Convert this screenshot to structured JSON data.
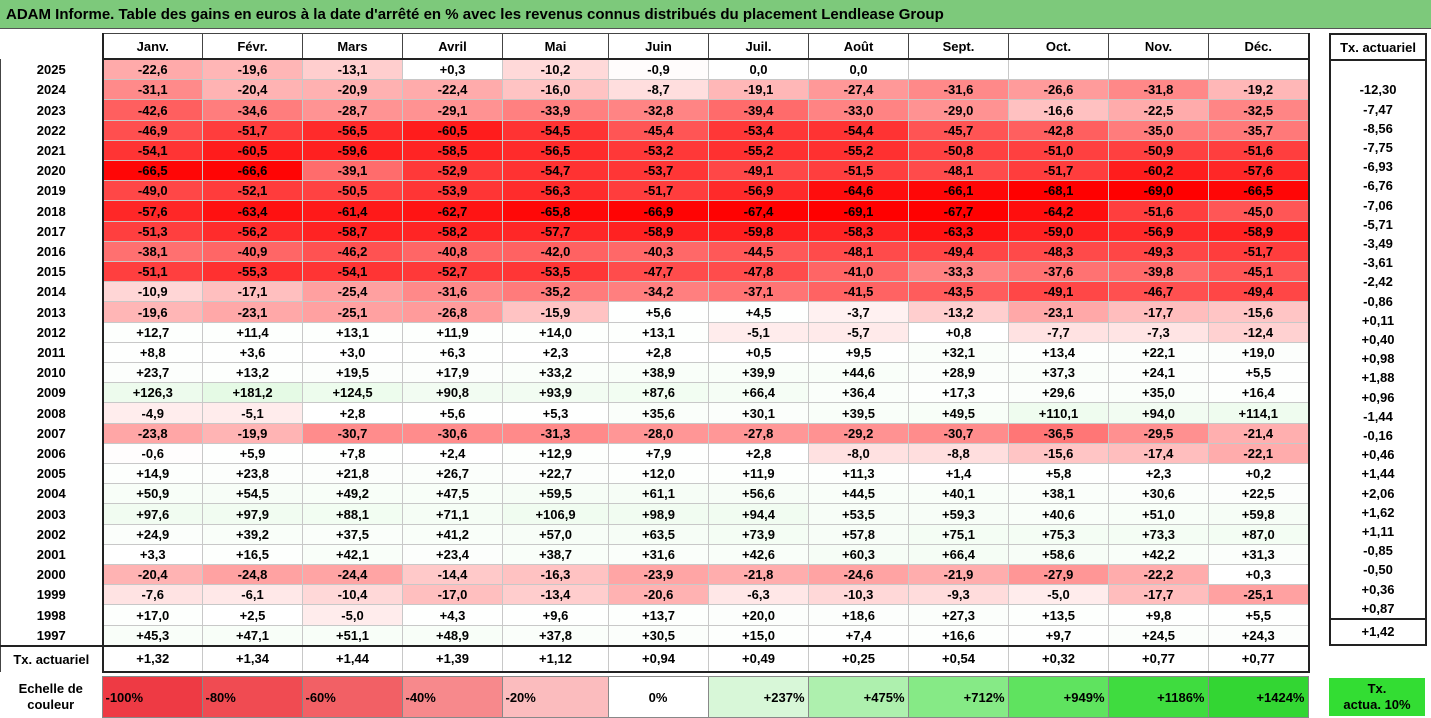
{
  "title": "ADAM Informe. Table des gains en euros à la date d'arrêté en % avec les revenus connus distribués du placement Lendlease Group",
  "chart_data": {
    "type": "table",
    "columns": [
      "Janv.",
      "Févr.",
      "Mars",
      "Avril",
      "Mai",
      "Juin",
      "Juil.",
      "Août",
      "Sept.",
      "Oct.",
      "Nov.",
      "Déc."
    ],
    "side_header": "Tx. actuariel",
    "rows": [
      {
        "year": "2025",
        "values": [
          "-22,6",
          "-19,6",
          "-13,1",
          "+0,3",
          "-10,2",
          "-0,9",
          "0,0",
          "0,0",
          "",
          "",
          "",
          ""
        ],
        "rate": ""
      },
      {
        "year": "2024",
        "values": [
          "-31,1",
          "-20,4",
          "-20,9",
          "-22,4",
          "-16,0",
          "-8,7",
          "-19,1",
          "-27,4",
          "-31,6",
          "-26,6",
          "-31,8",
          "-19,2"
        ],
        "rate": "-12,30"
      },
      {
        "year": "2023",
        "values": [
          "-42,6",
          "-34,6",
          "-28,7",
          "-29,1",
          "-33,9",
          "-32,8",
          "-39,4",
          "-33,0",
          "-29,0",
          "-16,6",
          "-22,5",
          "-32,5"
        ],
        "rate": "-7,47"
      },
      {
        "year": "2022",
        "values": [
          "-46,9",
          "-51,7",
          "-56,5",
          "-60,5",
          "-54,5",
          "-45,4",
          "-53,4",
          "-54,4",
          "-45,7",
          "-42,8",
          "-35,0",
          "-35,7"
        ],
        "rate": "-8,56"
      },
      {
        "year": "2021",
        "values": [
          "-54,1",
          "-60,5",
          "-59,6",
          "-58,5",
          "-56,5",
          "-53,2",
          "-55,2",
          "-55,2",
          "-50,8",
          "-51,0",
          "-50,9",
          "-51,6"
        ],
        "rate": "-7,75"
      },
      {
        "year": "2020",
        "values": [
          "-66,5",
          "-66,6",
          "-39,1",
          "-52,9",
          "-54,7",
          "-53,7",
          "-49,1",
          "-51,5",
          "-48,1",
          "-51,7",
          "-60,2",
          "-57,6"
        ],
        "rate": "-6,93"
      },
      {
        "year": "2019",
        "values": [
          "-49,0",
          "-52,1",
          "-50,5",
          "-53,9",
          "-56,3",
          "-51,7",
          "-56,9",
          "-64,6",
          "-66,1",
          "-68,1",
          "-69,0",
          "-66,5"
        ],
        "rate": "-6,76"
      },
      {
        "year": "2018",
        "values": [
          "-57,6",
          "-63,4",
          "-61,4",
          "-62,7",
          "-65,8",
          "-66,9",
          "-67,4",
          "-69,1",
          "-67,7",
          "-64,2",
          "-51,6",
          "-45,0"
        ],
        "rate": "-7,06"
      },
      {
        "year": "2017",
        "values": [
          "-51,3",
          "-56,2",
          "-58,7",
          "-58,2",
          "-57,7",
          "-58,9",
          "-59,8",
          "-58,3",
          "-63,3",
          "-59,0",
          "-56,9",
          "-58,9"
        ],
        "rate": "-5,71"
      },
      {
        "year": "2016",
        "values": [
          "-38,1",
          "-40,9",
          "-46,2",
          "-40,8",
          "-42,0",
          "-40,3",
          "-44,5",
          "-48,1",
          "-49,4",
          "-48,3",
          "-49,3",
          "-51,7"
        ],
        "rate": "-3,49"
      },
      {
        "year": "2015",
        "values": [
          "-51,1",
          "-55,3",
          "-54,1",
          "-52,7",
          "-53,5",
          "-47,7",
          "-47,8",
          "-41,0",
          "-33,3",
          "-37,6",
          "-39,8",
          "-45,1"
        ],
        "rate": "-3,61"
      },
      {
        "year": "2014",
        "values": [
          "-10,9",
          "-17,1",
          "-25,4",
          "-31,6",
          "-35,2",
          "-34,2",
          "-37,1",
          "-41,5",
          "-43,5",
          "-49,1",
          "-46,7",
          "-49,4"
        ],
        "rate": "-2,42"
      },
      {
        "year": "2013",
        "values": [
          "-19,6",
          "-23,1",
          "-25,1",
          "-26,8",
          "-15,9",
          "+5,6",
          "+4,5",
          "-3,7",
          "-13,2",
          "-23,1",
          "-17,7",
          "-15,6"
        ],
        "rate": "-0,86"
      },
      {
        "year": "2012",
        "values": [
          "+12,7",
          "+11,4",
          "+13,1",
          "+11,9",
          "+14,0",
          "+13,1",
          "-5,1",
          "-5,7",
          "+0,8",
          "-7,7",
          "-7,3",
          "-12,4"
        ],
        "rate": "+0,11"
      },
      {
        "year": "2011",
        "values": [
          "+8,8",
          "+3,6",
          "+3,0",
          "+6,3",
          "+2,3",
          "+2,8",
          "+0,5",
          "+9,5",
          "+32,1",
          "+13,4",
          "+22,1",
          "+19,0"
        ],
        "rate": "+0,40"
      },
      {
        "year": "2010",
        "values": [
          "+23,7",
          "+13,2",
          "+19,5",
          "+17,9",
          "+33,2",
          "+38,9",
          "+39,9",
          "+44,6",
          "+28,9",
          "+37,3",
          "+24,1",
          "+5,5"
        ],
        "rate": "+0,98"
      },
      {
        "year": "2009",
        "values": [
          "+126,3",
          "+181,2",
          "+124,5",
          "+90,8",
          "+93,9",
          "+87,6",
          "+66,4",
          "+36,4",
          "+17,3",
          "+29,6",
          "+35,0",
          "+16,4"
        ],
        "rate": "+1,88"
      },
      {
        "year": "2008",
        "values": [
          "-4,9",
          "-5,1",
          "+2,8",
          "+5,6",
          "+5,3",
          "+35,6",
          "+30,1",
          "+39,5",
          "+49,5",
          "+110,1",
          "+94,0",
          "+114,1"
        ],
        "rate": "+0,96"
      },
      {
        "year": "2007",
        "values": [
          "-23,8",
          "-19,9",
          "-30,7",
          "-30,6",
          "-31,3",
          "-28,0",
          "-27,8",
          "-29,2",
          "-30,7",
          "-36,5",
          "-29,5",
          "-21,4"
        ],
        "rate": "-1,44"
      },
      {
        "year": "2006",
        "values": [
          "-0,6",
          "+5,9",
          "+7,8",
          "+2,4",
          "+12,9",
          "+7,9",
          "+2,8",
          "-8,0",
          "-8,8",
          "-15,6",
          "-17,4",
          "-22,1"
        ],
        "rate": "-0,16"
      },
      {
        "year": "2005",
        "values": [
          "+14,9",
          "+23,8",
          "+21,8",
          "+26,7",
          "+22,7",
          "+12,0",
          "+11,9",
          "+11,3",
          "+1,4",
          "+5,8",
          "+2,3",
          "+0,2"
        ],
        "rate": "+0,46"
      },
      {
        "year": "2004",
        "values": [
          "+50,9",
          "+54,5",
          "+49,2",
          "+47,5",
          "+59,5",
          "+61,1",
          "+56,6",
          "+44,5",
          "+40,1",
          "+38,1",
          "+30,6",
          "+22,5"
        ],
        "rate": "+1,44"
      },
      {
        "year": "2003",
        "values": [
          "+97,6",
          "+97,9",
          "+88,1",
          "+71,1",
          "+106,9",
          "+98,9",
          "+94,4",
          "+53,5",
          "+59,3",
          "+40,6",
          "+51,0",
          "+59,8"
        ],
        "rate": "+2,06"
      },
      {
        "year": "2002",
        "values": [
          "+24,9",
          "+39,2",
          "+37,5",
          "+41,2",
          "+57,0",
          "+63,5",
          "+73,9",
          "+57,8",
          "+75,1",
          "+75,3",
          "+73,3",
          "+87,0"
        ],
        "rate": "+1,62"
      },
      {
        "year": "2001",
        "values": [
          "+3,3",
          "+16,5",
          "+42,1",
          "+23,4",
          "+38,7",
          "+31,6",
          "+42,6",
          "+60,3",
          "+66,4",
          "+58,6",
          "+42,2",
          "+31,3"
        ],
        "rate": "+1,11"
      },
      {
        "year": "2000",
        "values": [
          "-20,4",
          "-24,8",
          "-24,4",
          "-14,4",
          "-16,3",
          "-23,9",
          "-21,8",
          "-24,6",
          "-21,9",
          "-27,9",
          "-22,2",
          "+0,3"
        ],
        "rate": "-0,85"
      },
      {
        "year": "1999",
        "values": [
          "-7,6",
          "-6,1",
          "-10,4",
          "-17,0",
          "-13,4",
          "-20,6",
          "-6,3",
          "-10,3",
          "-9,3",
          "-5,0",
          "-17,7",
          "-25,1"
        ],
        "rate": "-0,50"
      },
      {
        "year": "1998",
        "values": [
          "+17,0",
          "+2,5",
          "-5,0",
          "+4,3",
          "+9,6",
          "+13,7",
          "+20,0",
          "+18,6",
          "+27,3",
          "+13,5",
          "+9,8",
          "+5,5"
        ],
        "rate": "+0,36"
      },
      {
        "year": "1997",
        "values": [
          "+45,3",
          "+47,1",
          "+51,1",
          "+48,9",
          "+37,8",
          "+30,5",
          "+15,0",
          "+7,4",
          "+16,6",
          "+9,7",
          "+24,5",
          "+24,3"
        ],
        "rate": "+0,87"
      }
    ],
    "footer": {
      "label": "Tx. actuariel",
      "values": [
        "+1,32",
        "+1,34",
        "+1,44",
        "+1,39",
        "+1,12",
        "+0,94",
        "+0,49",
        "+0,25",
        "+0,54",
        "+0,32",
        "+0,77",
        "+0,77"
      ],
      "rate": "+1,42"
    },
    "color_scale": {
      "label_line1": "Echelle de",
      "label_line2": "couleur",
      "stops": [
        {
          "label": "-100%",
          "color": "#ee3a44"
        },
        {
          "label": "-80%",
          "color": "#f04b52"
        },
        {
          "label": "-60%",
          "color": "#f26065"
        },
        {
          "label": "-40%",
          "color": "#f7898c"
        },
        {
          "label": "-20%",
          "color": "#fbbcbe"
        },
        {
          "label": "0%",
          "color": "#ffffff"
        },
        {
          "label": "+237%",
          "color": "#d8f7d8"
        },
        {
          "label": "+475%",
          "color": "#aef0ae"
        },
        {
          "label": "+712%",
          "color": "#86ea86"
        },
        {
          "label": "+949%",
          "color": "#5fe35f"
        },
        {
          "label": "+1186%",
          "color": "#3fdc3f"
        },
        {
          "label": "+1424%",
          "color": "#33d633"
        }
      ],
      "side_line1": "Tx.",
      "side_line2": "actua. 10%",
      "side_color": "#33dd33"
    }
  }
}
